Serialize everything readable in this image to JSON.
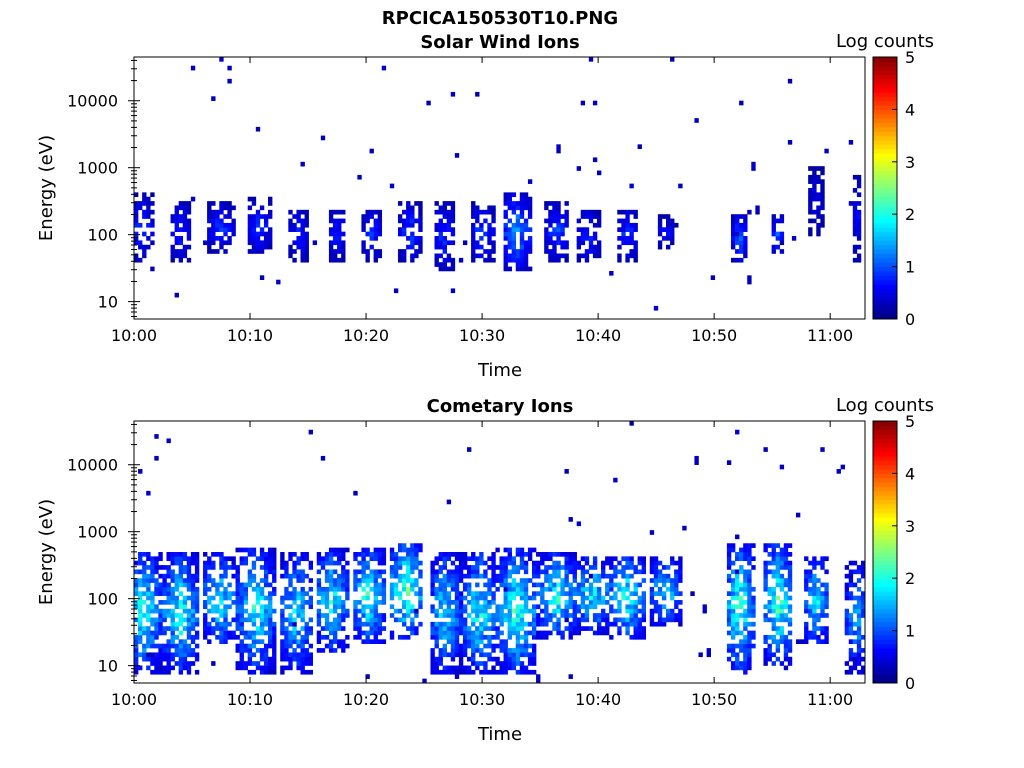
{
  "figure_title": "RPCICA150530T10.PNG",
  "chart_data": [
    {
      "type": "heatmap",
      "title": "Solar Wind Ions",
      "xlabel": "Time",
      "ylabel": "Energy (eV)",
      "colorbar_label": "Log counts",
      "y_scale": "log",
      "ylim": [
        5.5,
        45000
      ],
      "xlim": [
        "10:00",
        "11:03"
      ],
      "x_ticks": [
        "10:00",
        "10:10",
        "10:20",
        "10:30",
        "10:40",
        "10:50",
        "11:00"
      ],
      "y_ticks": [
        "10",
        "100",
        "1000",
        "10000"
      ],
      "y_tick_values": [
        10,
        100,
        1000,
        10000
      ],
      "colorbar_ticks": [
        "0",
        "1",
        "2",
        "3",
        "4",
        "5"
      ],
      "color_range": [
        0,
        5
      ],
      "colormap": "jet",
      "bursts": [
        {
          "t": 0.6,
          "lo": 40,
          "hi": 400,
          "peak": 0.9,
          "spread": 1.2
        },
        {
          "t": 4.0,
          "lo": 40,
          "hi": 300,
          "peak": 0.9,
          "spread": 1.0
        },
        {
          "t": 7.5,
          "lo": 50,
          "hi": 300,
          "peak": 0.9,
          "spread": 1.2
        },
        {
          "t": 10.8,
          "lo": 50,
          "hi": 350,
          "peak": 0.9,
          "spread": 1.0
        },
        {
          "t": 14.2,
          "lo": 40,
          "hi": 250,
          "peak": 0.8,
          "spread": 0.8
        },
        {
          "t": 17.5,
          "lo": 40,
          "hi": 250,
          "peak": 0.8,
          "spread": 0.8
        },
        {
          "t": 20.5,
          "lo": 40,
          "hi": 250,
          "peak": 0.9,
          "spread": 0.9
        },
        {
          "t": 23.8,
          "lo": 40,
          "hi": 300,
          "peak": 1.0,
          "spread": 0.9
        },
        {
          "t": 26.8,
          "lo": 30,
          "hi": 300,
          "peak": 0.9,
          "spread": 0.9
        },
        {
          "t": 30.0,
          "lo": 40,
          "hi": 300,
          "peak": 1.0,
          "spread": 1.0
        },
        {
          "t": 33.0,
          "lo": 30,
          "hi": 400,
          "peak": 1.4,
          "spread": 1.2
        },
        {
          "t": 36.5,
          "lo": 40,
          "hi": 300,
          "peak": 1.0,
          "spread": 1.0
        },
        {
          "t": 39.2,
          "lo": 40,
          "hi": 250,
          "peak": 0.9,
          "spread": 0.9
        },
        {
          "t": 42.5,
          "lo": 40,
          "hi": 250,
          "peak": 0.9,
          "spread": 1.0
        },
        {
          "t": 45.8,
          "lo": 60,
          "hi": 200,
          "peak": 0.7,
          "spread": 0.8
        },
        {
          "t": 52.2,
          "lo": 40,
          "hi": 200,
          "peak": 1.2,
          "spread": 0.6
        },
        {
          "t": 55.5,
          "lo": 50,
          "hi": 200,
          "peak": 1.0,
          "spread": 0.6
        },
        {
          "t": 58.8,
          "lo": 100,
          "hi": 1000,
          "peak": 0.6,
          "spread": 0.6
        },
        {
          "t": 62.3,
          "lo": 40,
          "hi": 800,
          "peak": 0.7,
          "spread": 0.5
        }
      ]
    },
    {
      "type": "heatmap",
      "title": "Cometary Ions",
      "xlabel": "Time",
      "ylabel": "Energy (eV)",
      "colorbar_label": "Log counts",
      "y_scale": "log",
      "ylim": [
        5.5,
        45000
      ],
      "xlim": [
        "10:00",
        "11:03"
      ],
      "x_ticks": [
        "10:00",
        "10:10",
        "10:20",
        "10:30",
        "10:40",
        "10:50",
        "11:00"
      ],
      "y_ticks": [
        "10",
        "100",
        "1000",
        "10000"
      ],
      "y_tick_values": [
        10,
        100,
        1000,
        10000
      ],
      "colorbar_ticks": [
        "0",
        "1",
        "2",
        "3",
        "4",
        "5"
      ],
      "color_range": [
        0,
        5
      ],
      "colormap": "jet",
      "bursts": [
        {
          "t": 0.8,
          "lo": 8,
          "hi": 500,
          "peak": 2.0,
          "spread": 1.6
        },
        {
          "t": 4.0,
          "lo": 8,
          "hi": 500,
          "peak": 2.0,
          "spread": 1.6
        },
        {
          "t": 7.3,
          "lo": 20,
          "hi": 500,
          "peak": 1.9,
          "spread": 1.5
        },
        {
          "t": 10.5,
          "lo": 8,
          "hi": 600,
          "peak": 2.0,
          "spread": 1.6
        },
        {
          "t": 14.0,
          "lo": 8,
          "hi": 500,
          "peak": 1.8,
          "spread": 1.4
        },
        {
          "t": 17.0,
          "lo": 15,
          "hi": 600,
          "peak": 1.9,
          "spread": 1.4
        },
        {
          "t": 20.2,
          "lo": 20,
          "hi": 600,
          "peak": 2.1,
          "spread": 1.4
        },
        {
          "t": 23.5,
          "lo": 25,
          "hi": 700,
          "peak": 2.4,
          "spread": 1.5
        },
        {
          "t": 26.8,
          "lo": 8,
          "hi": 500,
          "peak": 1.8,
          "spread": 1.4
        },
        {
          "t": 29.8,
          "lo": 8,
          "hi": 500,
          "peak": 2.0,
          "spread": 1.5
        },
        {
          "t": 33.0,
          "lo": 8,
          "hi": 600,
          "peak": 2.2,
          "spread": 1.7
        },
        {
          "t": 36.5,
          "lo": 25,
          "hi": 500,
          "peak": 2.0,
          "spread": 1.7
        },
        {
          "t": 39.5,
          "lo": 30,
          "hi": 450,
          "peak": 1.9,
          "spread": 1.7
        },
        {
          "t": 42.5,
          "lo": 25,
          "hi": 450,
          "peak": 2.0,
          "spread": 1.7
        },
        {
          "t": 45.8,
          "lo": 40,
          "hi": 400,
          "peak": 1.8,
          "spread": 1.5
        },
        {
          "t": 52.2,
          "lo": 8,
          "hi": 700,
          "peak": 2.2,
          "spread": 1.2
        },
        {
          "t": 55.5,
          "lo": 10,
          "hi": 700,
          "peak": 2.2,
          "spread": 1.3
        },
        {
          "t": 58.8,
          "lo": 20,
          "hi": 450,
          "peak": 1.8,
          "spread": 1.2
        },
        {
          "t": 62.3,
          "lo": 8,
          "hi": 350,
          "peak": 1.6,
          "spread": 0.9
        }
      ]
    }
  ]
}
